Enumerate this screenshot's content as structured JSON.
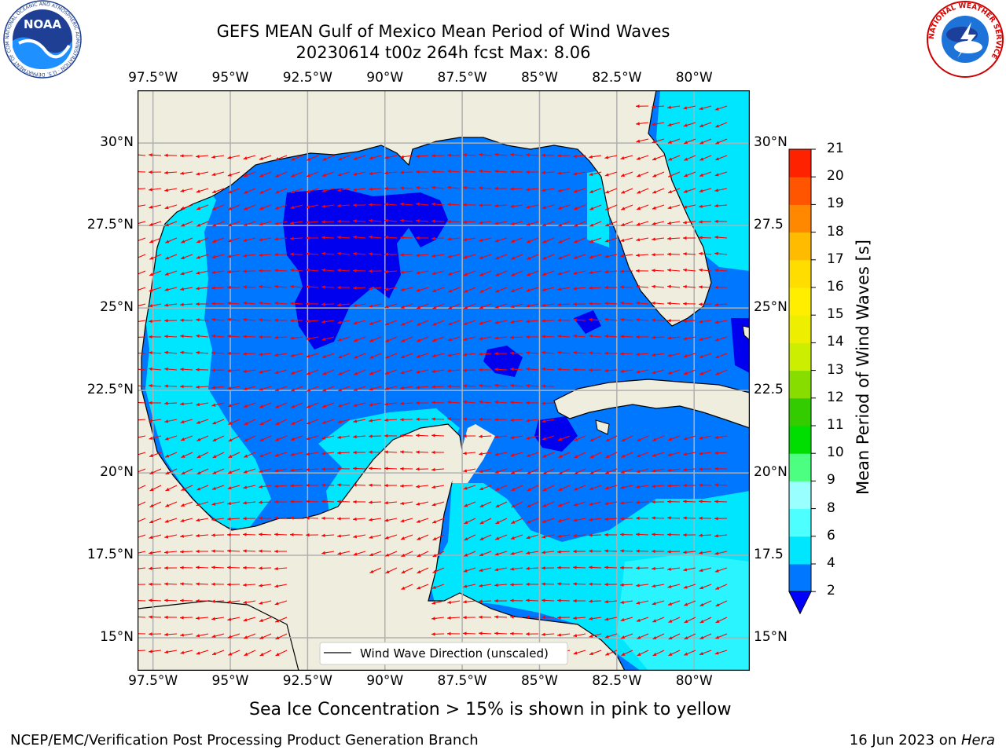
{
  "header": {
    "title_line1": "GEFS MEAN Gulf of Mexico Mean Period of Wind Waves",
    "title_line2": "20230614 t00z 264h fcst   Max: 8.06"
  },
  "logos": {
    "left": "NOAA",
    "left_ring": "NATIONAL OCEANIC AND ATMOSPHERIC ADMINISTRATION · U.S. DEPARTMENT OF COMMERCE",
    "right_ring": "NATIONAL WEATHER SERVICE"
  },
  "map": {
    "lon_labels": [
      "97.5°W",
      "95°W",
      "92.5°W",
      "90°W",
      "87.5°W",
      "85°W",
      "82.5°W",
      "80°W"
    ],
    "lat_labels_left": [
      "30°N",
      "27.5°N",
      "25°N",
      "22.5°N",
      "20°N",
      "17.5°N",
      "15°N"
    ],
    "lat_labels_right": [
      "30°N",
      "27.5",
      "25°N",
      "22.5",
      "20°N",
      "17.5",
      "15°N"
    ],
    "lon_range": [
      -98,
      -78.2
    ],
    "lat_range": [
      14,
      31.6
    ],
    "legend_label": "Wind Wave Direction (unscaled)",
    "colors": {
      "land": "#efedde",
      "grid": "#b0b0b0",
      "arrow": "#ff0000",
      "coast": "#000000"
    }
  },
  "colorbar": {
    "label": "Mean Period of Wind Waves [s]",
    "levels": [
      "2",
      "4",
      "6",
      "8",
      "9",
      "10",
      "11",
      "12",
      "13",
      "14",
      "15",
      "16",
      "17",
      "18",
      "19",
      "20",
      "21"
    ],
    "colors": [
      "#0077ff",
      "#00e6ff",
      "#4dffff",
      "#99ffff",
      "#4dff80",
      "#00dd00",
      "#33cc00",
      "#88dd00",
      "#ccee00",
      "#eeee00",
      "#ffee00",
      "#ffdd00",
      "#ffbb00",
      "#ff8800",
      "#ff5500",
      "#ff2200",
      "#ff0000"
    ],
    "under_color": "#0000ff"
  },
  "caption": "Sea Ice Concentration > 15% is shown in pink to yellow",
  "footer": {
    "left": "NCEP/EMC/Verification Post Processing Product Generation Branch",
    "right_prefix": "16 Jun 2023 on ",
    "right_machine": "Hera"
  }
}
